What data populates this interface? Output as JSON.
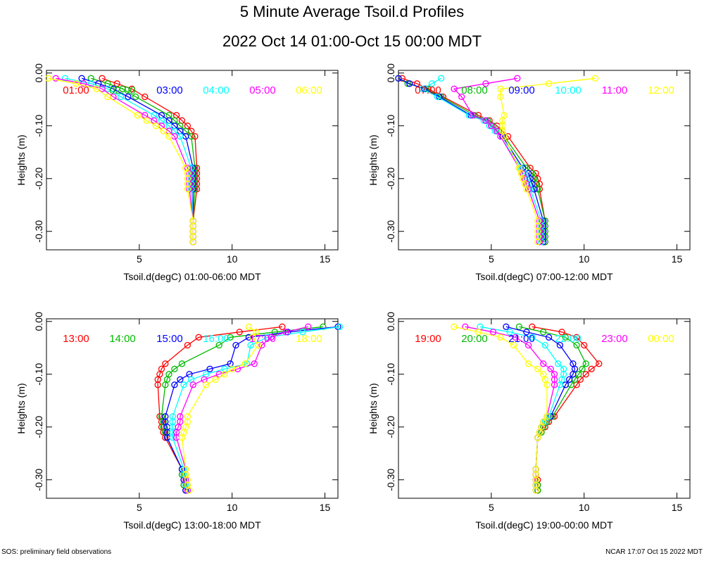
{
  "title": "5 Minute Average Tsoil.d Profiles",
  "subtitle": "2022 Oct 14 01:00-Oct 15 00:00 MDT",
  "ylabel": "Heights (m)",
  "footer_left": "SOS: preliminary field observations",
  "footer_right": "NCAR 17:07 Oct 15 2022 MDT",
  "colors": [
    "#ff0000",
    "#00bb00",
    "#0000ff",
    "#00ffff",
    "#ff00ff",
    "#ffff00"
  ],
  "chart_data": [
    {
      "type": "line",
      "xlabel": "Tsoil.d(degC) 01:00-06:00 MDT",
      "xlim": [
        0,
        15.7
      ],
      "ylim": [
        -0.335,
        0.005
      ],
      "x_ticks": [
        "5",
        "10",
        "15"
      ],
      "y_ticks": [
        "0.00",
        "-0.10",
        "-0.20",
        "-0.30"
      ],
      "depths": [
        -0.01,
        -0.02,
        -0.03,
        -0.045,
        -0.08,
        -0.09,
        -0.1,
        -0.11,
        -0.12,
        -0.18,
        -0.19,
        -0.2,
        -0.21,
        -0.22,
        -0.28,
        -0.29,
        -0.3,
        -0.31,
        -0.32
      ],
      "series": [
        {
          "name": "01:00",
          "values": [
            3.0,
            3.8,
            4.6,
            5.3,
            7.0,
            7.3,
            7.6,
            7.8,
            8.0,
            8.1,
            8.1,
            8.1,
            8.1,
            8.1,
            7.9,
            7.9,
            7.9,
            7.9,
            7.9
          ]
        },
        {
          "name": "02:00",
          "values": [
            2.4,
            3.3,
            4.1,
            4.8,
            6.6,
            6.9,
            7.2,
            7.5,
            7.8,
            8.0,
            8.0,
            8.0,
            8.0,
            8.0,
            7.9,
            7.9,
            7.9,
            7.9,
            7.9
          ]
        },
        {
          "name": "03:00",
          "values": [
            1.9,
            2.8,
            3.6,
            4.4,
            6.2,
            6.6,
            6.9,
            7.2,
            7.5,
            7.9,
            7.9,
            7.9,
            7.9,
            7.9,
            7.9,
            7.9,
            7.9,
            7.9,
            7.9
          ]
        },
        {
          "name": "04:00",
          "values": [
            1.0,
            2.4,
            3.3,
            4.0,
            5.8,
            6.2,
            6.6,
            6.9,
            7.2,
            7.8,
            7.8,
            7.8,
            7.8,
            7.8,
            7.9,
            7.9,
            7.9,
            7.9,
            7.9
          ]
        },
        {
          "name": "05:00",
          "values": [
            0.5,
            2.0,
            3.0,
            3.6,
            5.3,
            5.8,
            6.2,
            6.6,
            6.9,
            7.6,
            7.7,
            7.7,
            7.7,
            7.7,
            7.9,
            7.9,
            7.9,
            7.9,
            7.9
          ]
        },
        {
          "name": "06:00",
          "values": [
            0.1,
            1.6,
            2.7,
            3.3,
            4.9,
            5.4,
            5.9,
            6.3,
            6.6,
            7.5,
            7.6,
            7.6,
            7.6,
            7.6,
            7.9,
            7.9,
            7.9,
            7.9,
            7.9
          ]
        }
      ]
    },
    {
      "type": "line",
      "xlabel": "Tsoil.d(degC) 07:00-12:00 MDT",
      "xlim": [
        0,
        15.7
      ],
      "ylim": [
        -0.335,
        0.005
      ],
      "x_ticks": [
        "5",
        "10",
        "15"
      ],
      "y_ticks": [
        "0.00",
        "-0.10",
        "-0.20",
        "-0.30"
      ],
      "depths": [
        -0.01,
        -0.02,
        -0.03,
        -0.045,
        -0.08,
        -0.09,
        -0.1,
        -0.11,
        -0.12,
        -0.18,
        -0.19,
        -0.2,
        -0.21,
        -0.22,
        -0.28,
        -0.29,
        -0.3,
        -0.31,
        -0.32
      ],
      "series": [
        {
          "name": "07:00",
          "values": [
            0.2,
            1.0,
            1.6,
            2.4,
            4.3,
            4.9,
            5.3,
            5.6,
            5.9,
            7.1,
            7.4,
            7.5,
            7.6,
            7.6,
            7.9,
            7.9,
            7.9,
            7.9,
            7.9
          ]
        },
        {
          "name": "08:00",
          "values": [
            0.0,
            0.5,
            1.5,
            2.3,
            4.1,
            4.8,
            5.1,
            5.4,
            5.7,
            6.9,
            7.2,
            7.3,
            7.4,
            7.5,
            7.9,
            7.9,
            7.9,
            7.9,
            7.9
          ]
        },
        {
          "name": "09:00",
          "values": [
            0.0,
            0.6,
            1.4,
            2.2,
            3.9,
            4.7,
            5.0,
            5.3,
            5.6,
            6.7,
            7.0,
            7.1,
            7.2,
            7.3,
            7.8,
            7.8,
            7.8,
            7.8,
            7.8
          ]
        },
        {
          "name": "10:00",
          "values": [
            2.3,
            1.8,
            1.3,
            2.1,
            3.8,
            4.6,
            4.9,
            5.2,
            5.5,
            6.6,
            6.8,
            6.9,
            7.0,
            7.1,
            7.7,
            7.7,
            7.7,
            7.7,
            7.7
          ]
        },
        {
          "name": "11:00",
          "values": [
            6.4,
            4.7,
            3.0,
            3.4,
            4.0,
            4.7,
            5.0,
            5.3,
            5.5,
            6.5,
            6.7,
            6.8,
            6.9,
            7.0,
            7.6,
            7.6,
            7.6,
            7.6,
            7.6
          ]
        },
        {
          "name": "12:00",
          "values": [
            10.6,
            8.1,
            5.5,
            5.5,
            5.7,
            5.6,
            5.6,
            5.6,
            5.7,
            6.5,
            6.6,
            6.7,
            6.8,
            6.9,
            7.5,
            7.5,
            7.5,
            7.5,
            7.5
          ]
        }
      ]
    },
    {
      "type": "line",
      "xlabel": "Tsoil.d(degC) 13:00-18:00 MDT",
      "xlim": [
        0,
        15.7
      ],
      "ylim": [
        -0.335,
        0.005
      ],
      "x_ticks": [
        "5",
        "10",
        "15"
      ],
      "y_ticks": [
        "0.00",
        "-0.10",
        "-0.20",
        "-0.30"
      ],
      "depths": [
        -0.01,
        -0.02,
        -0.03,
        -0.045,
        -0.08,
        -0.09,
        -0.1,
        -0.11,
        -0.12,
        -0.18,
        -0.19,
        -0.2,
        -0.21,
        -0.22,
        -0.28,
        -0.29,
        -0.3,
        -0.31,
        -0.32
      ],
      "series": [
        {
          "name": "13:00",
          "values": [
            12.7,
            10.4,
            8.2,
            7.6,
            6.4,
            6.2,
            6.1,
            6.0,
            6.0,
            6.1,
            6.2,
            6.2,
            6.3,
            6.4,
            7.3,
            7.3,
            7.4,
            7.4,
            7.5
          ]
        },
        {
          "name": "14:00",
          "values": [
            14.9,
            12.3,
            9.9,
            9.3,
            7.3,
            6.9,
            6.6,
            6.5,
            6.4,
            6.2,
            6.3,
            6.3,
            6.4,
            6.5,
            7.3,
            7.3,
            7.4,
            7.4,
            7.5
          ]
        },
        {
          "name": "15:00",
          "values": [
            15.7,
            13.0,
            10.9,
            10.2,
            9.9,
            8.8,
            7.7,
            7.2,
            6.9,
            6.4,
            6.4,
            6.5,
            6.5,
            6.5,
            7.3,
            7.4,
            7.4,
            7.5,
            7.5
          ]
        },
        {
          "name": "16:00",
          "values": [
            15.8,
            13.8,
            11.9,
            11.0,
            10.8,
            9.6,
            8.6,
            7.8,
            7.4,
            6.8,
            6.8,
            6.8,
            6.8,
            6.8,
            7.4,
            7.4,
            7.5,
            7.5,
            7.6
          ]
        },
        {
          "name": "17:00",
          "values": [
            14.1,
            12.9,
            12.1,
            11.6,
            11.2,
            10.3,
            9.3,
            8.5,
            7.9,
            7.2,
            7.2,
            7.1,
            7.0,
            7.0,
            7.5,
            7.5,
            7.5,
            7.6,
            7.6
          ]
        },
        {
          "name": "18:00",
          "values": [
            10.9,
            11.3,
            11.1,
            11.4,
            10.7,
            10.0,
            9.6,
            9.1,
            8.6,
            7.6,
            7.6,
            7.5,
            7.4,
            7.3,
            7.5,
            7.5,
            7.6,
            7.6,
            7.7
          ]
        }
      ]
    },
    {
      "type": "line",
      "xlabel": "Tsoil.d(degC) 19:00-00:00 MDT",
      "xlim": [
        0,
        15.7
      ],
      "ylim": [
        -0.335,
        0.005
      ],
      "x_ticks": [
        "5",
        "10",
        "15"
      ],
      "y_ticks": [
        "0.00",
        "-0.10",
        "-0.20",
        "-0.30"
      ],
      "depths": [
        -0.01,
        -0.02,
        -0.03,
        -0.045,
        -0.08,
        -0.09,
        -0.1,
        -0.11,
        -0.12,
        -0.18,
        -0.19,
        -0.2,
        -0.21,
        -0.22,
        -0.28,
        -0.29,
        -0.3,
        -0.31,
        -0.32
      ],
      "series": [
        {
          "name": "19:00",
          "values": [
            7.2,
            8.8,
            9.6,
            10.0,
            10.8,
            10.4,
            10.1,
            9.8,
            9.6,
            8.4,
            8.1,
            7.9,
            7.7,
            7.5,
            7.4,
            7.4,
            7.5,
            7.5,
            7.5
          ]
        },
        {
          "name": "20:00",
          "values": [
            6.5,
            7.8,
            9.0,
            9.6,
            10.1,
            9.9,
            9.7,
            9.5,
            9.3,
            8.3,
            8.0,
            7.8,
            7.7,
            7.5,
            7.4,
            7.4,
            7.4,
            7.5,
            7.5
          ]
        },
        {
          "name": "21:00",
          "values": [
            5.8,
            6.9,
            8.1,
            8.7,
            9.4,
            9.5,
            9.4,
            9.2,
            9.0,
            8.2,
            7.9,
            7.7,
            7.6,
            7.5,
            7.4,
            7.4,
            7.4,
            7.4,
            7.4
          ]
        },
        {
          "name": "22:00",
          "values": [
            4.4,
            6.0,
            7.2,
            7.9,
            8.6,
            8.9,
            8.9,
            8.8,
            8.7,
            8.1,
            7.9,
            7.7,
            7.6,
            7.5,
            7.4,
            7.4,
            7.4,
            7.4,
            7.4
          ]
        },
        {
          "name": "23:00",
          "values": [
            3.6,
            5.1,
            6.3,
            7.0,
            7.8,
            8.2,
            8.4,
            8.4,
            8.4,
            8.0,
            7.8,
            7.7,
            7.6,
            7.5,
            7.4,
            7.4,
            7.4,
            7.4,
            7.4
          ]
        },
        {
          "name": "00:00",
          "values": [
            3.0,
            4.3,
            5.5,
            6.2,
            7.0,
            7.5,
            7.8,
            7.9,
            8.0,
            8.0,
            7.8,
            7.7,
            7.6,
            7.5,
            7.4,
            7.4,
            7.4,
            7.4,
            7.4
          ]
        }
      ]
    }
  ]
}
